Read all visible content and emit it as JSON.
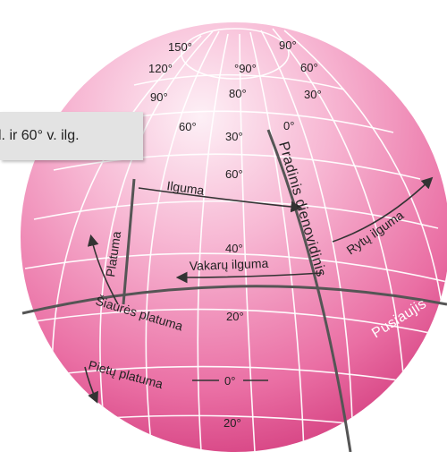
{
  "callout": {
    "text": "l. ir 60° v. ilg."
  },
  "labels": {
    "top_150": "150°",
    "top_90_right": "90°",
    "top_120": "120°",
    "top_90_center": "°90°",
    "top_60_right": "60°",
    "row3_90": "90°",
    "row3_80": "80°",
    "row3_30": "30°",
    "row4_60": "60°",
    "row4_30": "30°",
    "row4_0": "0°",
    "lat_60": "60°",
    "lat_40": "40°",
    "lat_20": "20°",
    "lat_0": "0°",
    "lat_s20": "20°",
    "ilguma": "Ilguma",
    "rytu_ilguma": "Rytų ilguma",
    "vakaru_ilguma": "Vakarų ilguma",
    "platuma": "Platuma",
    "siaures_platuma": "Šiaurės platuma",
    "pietu_platuma": "Pietų platuma",
    "pradinis_dienovidinis": "Pradinis dienovidinis",
    "pusiaujis": "Pusiaujis"
  },
  "colors": {
    "globe_light": "#fbe3ee",
    "globe_mid": "#f08cb8",
    "globe_dark": "#d23a7c",
    "grid": "#ffffff",
    "heavy_line": "#555555"
  }
}
